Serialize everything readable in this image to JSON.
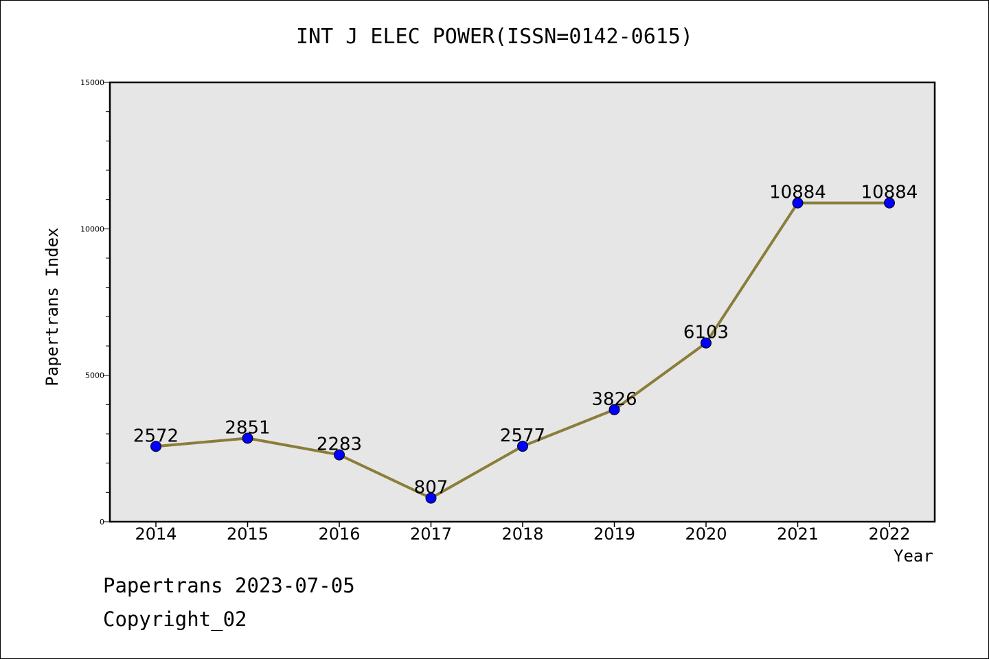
{
  "chart_data": {
    "type": "line",
    "title": "INT J ELEC POWER(ISSN=0142-0615)",
    "xlabel": "Year",
    "ylabel": "Papertrans Index",
    "categories": [
      "2014",
      "2015",
      "2016",
      "2017",
      "2018",
      "2019",
      "2020",
      "2021",
      "2022"
    ],
    "values": [
      2572,
      2851,
      2283,
      807,
      2577,
      3826,
      6103,
      10884,
      10884
    ],
    "data_labels": [
      "2572",
      "2851",
      "2283",
      "807",
      "2577",
      "3826",
      "6103",
      "10884",
      "10884"
    ],
    "ylim": [
      0,
      15000
    ],
    "yticks": [
      0,
      5000,
      10000,
      15000
    ],
    "ytick_labels": [
      "0",
      "5000",
      "10000",
      "15000"
    ],
    "y_minor_step": 1000,
    "grid": false,
    "legend": "none",
    "line_color": "#8b7d3a",
    "marker_color": "#0000ff",
    "plot_background": "#e6e6e6"
  },
  "footer": {
    "line1": "Papertrans 2023-07-05",
    "line2": "Copyright_02"
  }
}
